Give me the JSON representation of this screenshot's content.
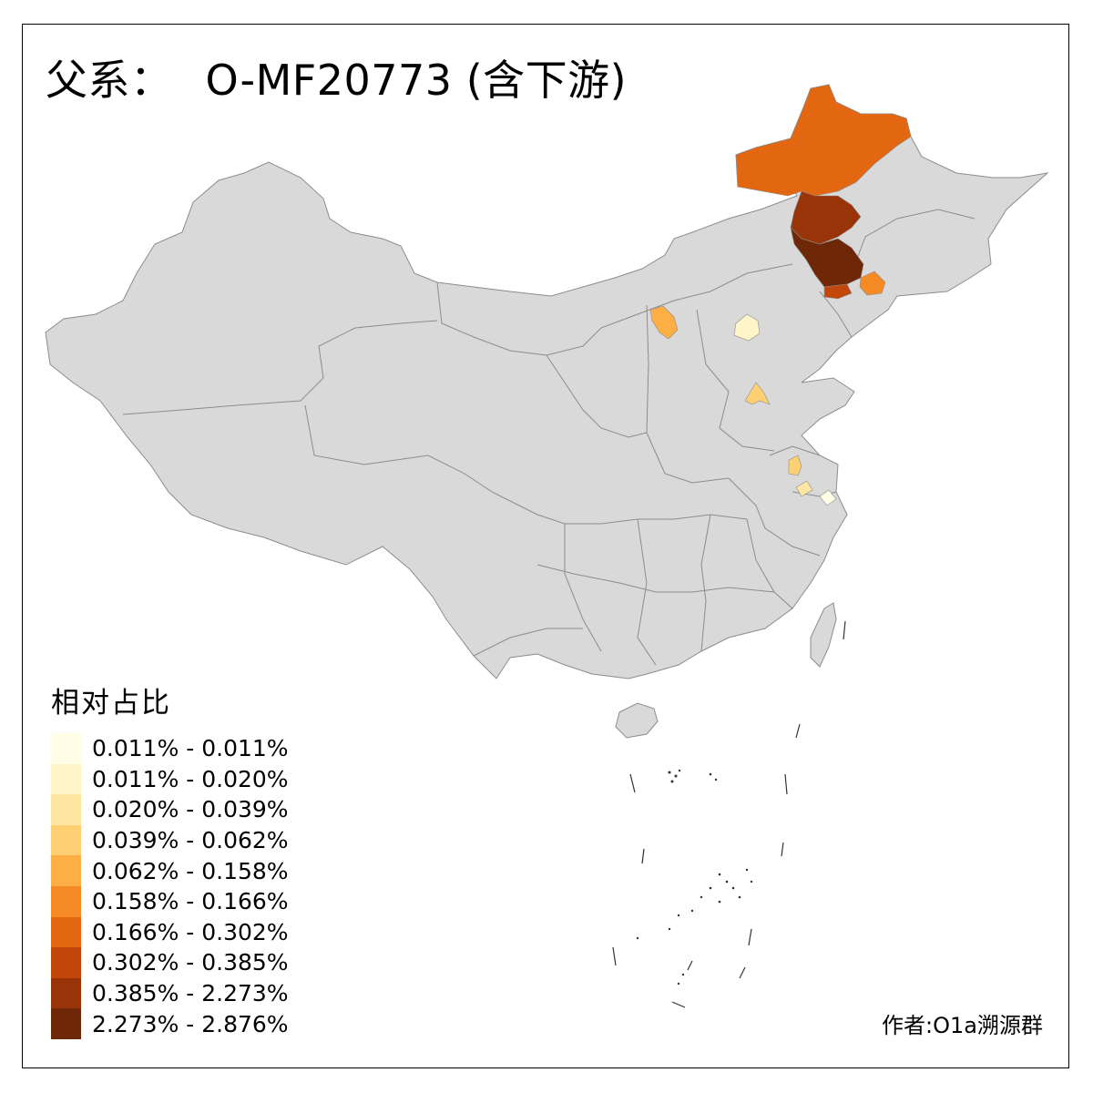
{
  "title": {
    "prefix": "父系：",
    "haplogroup": "O-MF20773 (含下游)"
  },
  "legend": {
    "title": "相对占比",
    "items": [
      {
        "label": "0.011% - 0.011%",
        "color": "#FFFDE6"
      },
      {
        "label": "0.011% - 0.020%",
        "color": "#FFF5C8"
      },
      {
        "label": "0.020% - 0.039%",
        "color": "#FEE6A0"
      },
      {
        "label": "0.039% - 0.062%",
        "color": "#FED073"
      },
      {
        "label": "0.062% - 0.158%",
        "color": "#FDAE45"
      },
      {
        "label": "0.158% - 0.166%",
        "color": "#F68A24"
      },
      {
        "label": "0.166% - 0.302%",
        "color": "#E36611"
      },
      {
        "label": "0.302% - 0.385%",
        "color": "#C2470A"
      },
      {
        "label": "0.385% - 2.273%",
        "color": "#993308"
      },
      {
        "label": "2.273% - 2.876%",
        "color": "#6E2707"
      }
    ]
  },
  "credit": "作者:O1a溯源群",
  "map": {
    "base_color": "#D9D9D9",
    "border_color": "#8C8C8C",
    "highlighted_regions": [
      {
        "name": "Hulunbuir",
        "color": "#E36611"
      },
      {
        "name": "Hinggan",
        "color": "#993308"
      },
      {
        "name": "Tongliao",
        "color": "#6E2707"
      },
      {
        "name": "Chifeng",
        "color": "#C2470A"
      },
      {
        "name": "Shenyang",
        "color": "#F68A24"
      },
      {
        "name": "Hohhot",
        "color": "#FDAE45"
      },
      {
        "name": "Beijing",
        "color": "#FFF5C8"
      },
      {
        "name": "Jinan",
        "color": "#FED073"
      },
      {
        "name": "Yangzhou",
        "color": "#FED073"
      },
      {
        "name": "Nanjing",
        "color": "#FEE6A0"
      },
      {
        "name": "Shanghai",
        "color": "#FFFDE6"
      }
    ]
  }
}
